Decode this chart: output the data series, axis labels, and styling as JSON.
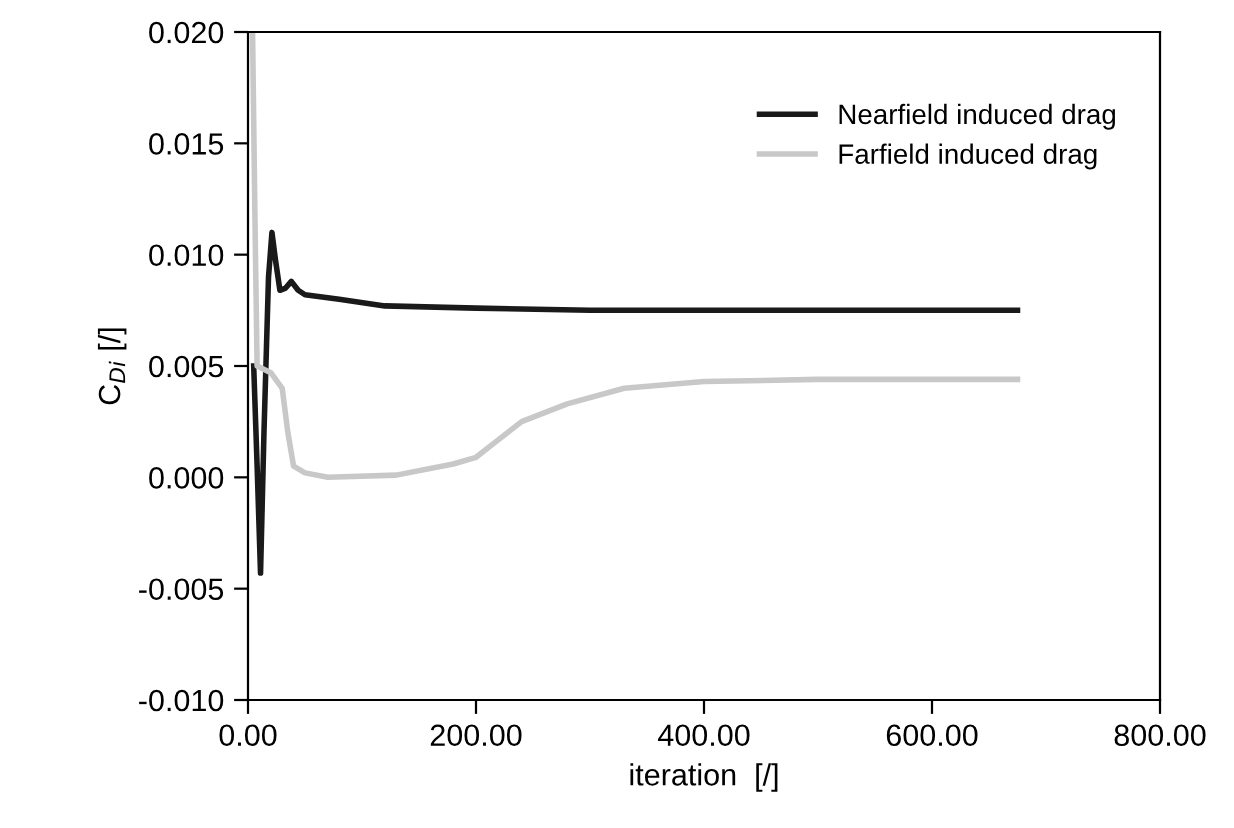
{
  "chart_data": {
    "type": "line",
    "xlabel": "iteration  [/]",
    "ylabel": "C$_{Di}$ [/]",
    "xlim": [
      0,
      800
    ],
    "xticks": [
      {
        "value": 0,
        "label": "0.00"
      },
      {
        "value": 200,
        "label": "200.00"
      },
      {
        "value": 400,
        "label": "400.00"
      },
      {
        "value": 600,
        "label": "600.00"
      },
      {
        "value": 800,
        "label": "800.00"
      }
    ],
    "ylim": [
      -0.01,
      0.02
    ],
    "yticks": [
      {
        "value": -0.01,
        "label": "-0.010"
      },
      {
        "value": -0.005,
        "label": "-0.005"
      },
      {
        "value": 0,
        "label": "0.000"
      },
      {
        "value": 0.005,
        "label": "0.005"
      },
      {
        "value": 0.01,
        "label": "0.010"
      },
      {
        "value": 0.015,
        "label": "0.015"
      },
      {
        "value": 0.02,
        "label": "0.020"
      }
    ],
    "legend": "top right",
    "grid": false,
    "series": [
      {
        "name": "Nearfield induced drag",
        "color": "#1a1a1a",
        "x": [
          5,
          8,
          11,
          14,
          18,
          21,
          24,
          28,
          33,
          38,
          44,
          50,
          80,
          120,
          200,
          300,
          675
        ],
        "values": [
          0.005,
          0.0005,
          -0.0043,
          0.002,
          0.009,
          0.011,
          0.0098,
          0.0084,
          0.0085,
          0.0088,
          0.0084,
          0.0082,
          0.008,
          0.0077,
          0.0076,
          0.0075,
          0.0075
        ]
      },
      {
        "name": "Farfield induced drag",
        "color": "#c8c8c8",
        "x": [
          4,
          6,
          8,
          20,
          30,
          35,
          40,
          50,
          70,
          130,
          180,
          200,
          215,
          240,
          280,
          330,
          400,
          500,
          675
        ],
        "values": [
          0.02,
          0.012,
          0.005,
          0.0047,
          0.004,
          0.002,
          0.0005,
          0.0002,
          0.0,
          0.0001,
          0.0006,
          0.0009,
          0.0015,
          0.0025,
          0.0033,
          0.004,
          0.0043,
          0.0044,
          0.0044
        ]
      }
    ]
  }
}
